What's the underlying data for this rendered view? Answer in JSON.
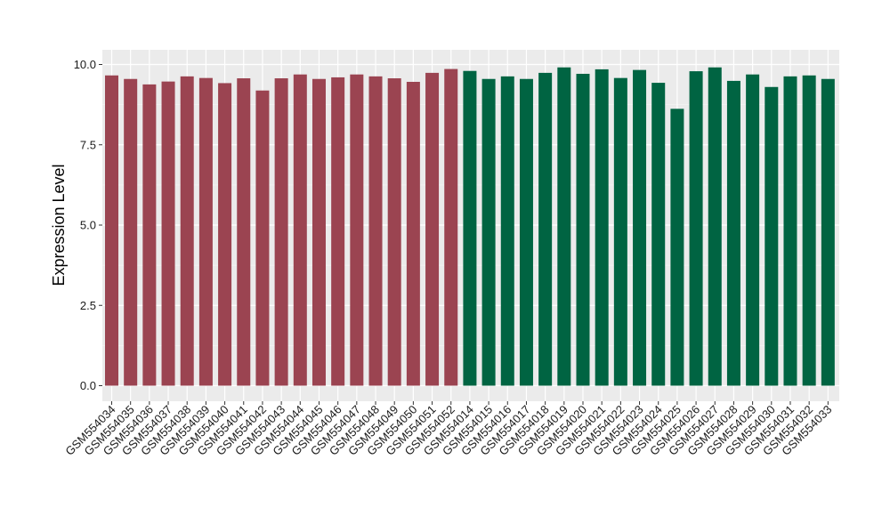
{
  "chart_data": {
    "type": "bar",
    "title": "",
    "xlabel": "",
    "ylabel": "Expression Level",
    "ylim": [
      0,
      10.4
    ],
    "yticks": [
      "0.0",
      "2.5",
      "5.0",
      "7.5",
      "10.0"
    ],
    "ytick_values": [
      0,
      2.5,
      5,
      7.5,
      10
    ],
    "grid": true,
    "legend": "none",
    "panel_background": "#ebebeb",
    "categories": [
      "GSM554034",
      "GSM554035",
      "GSM554036",
      "GSM554037",
      "GSM554038",
      "GSM554039",
      "GSM554040",
      "GSM554041",
      "GSM554042",
      "GSM554043",
      "GSM554044",
      "GSM554045",
      "GSM554046",
      "GSM554047",
      "GSM554048",
      "GSM554049",
      "GSM554050",
      "GSM554051",
      "GSM554052",
      "GSM554014",
      "GSM554015",
      "GSM554016",
      "GSM554017",
      "GSM554018",
      "GSM554019",
      "GSM554020",
      "GSM554021",
      "GSM554022",
      "GSM554023",
      "GSM554024",
      "GSM554025",
      "GSM554026",
      "GSM554027",
      "GSM554028",
      "GSM554029",
      "GSM554030",
      "GSM554031",
      "GSM554032",
      "GSM554033"
    ],
    "values": [
      9.66,
      9.55,
      9.38,
      9.47,
      9.63,
      9.58,
      9.42,
      9.57,
      9.19,
      9.57,
      9.69,
      9.55,
      9.6,
      9.69,
      9.63,
      9.57,
      9.46,
      9.74,
      9.86,
      9.8,
      9.55,
      9.63,
      9.55,
      9.74,
      9.91,
      9.71,
      9.85,
      9.58,
      9.83,
      9.43,
      8.62,
      9.79,
      9.91,
      9.49,
      9.69,
      9.3,
      9.63,
      9.66,
      9.55
    ],
    "groups": [
      {
        "color": "#9b4451",
        "count": 19
      },
      {
        "color": "#006442",
        "count": 20
      }
    ]
  }
}
